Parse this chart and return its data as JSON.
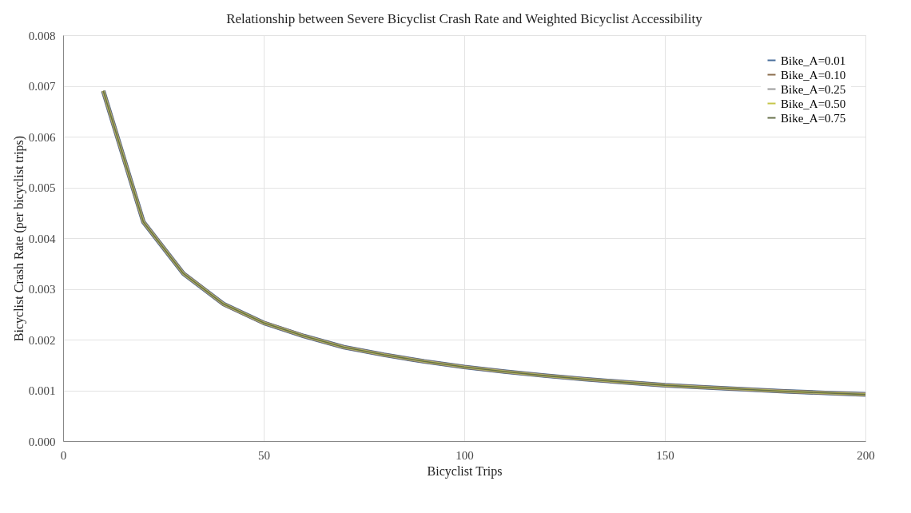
{
  "chart_data": {
    "type": "line",
    "title": "Relationship between Severe Bicyclist Crash Rate and Weighted Bicyclist Accessibility",
    "xlabel": "Bicyclist Trips",
    "ylabel": "Bicyclist Crash Rate (per bicyclist trips)",
    "x": [
      10,
      20,
      30,
      40,
      50,
      60,
      70,
      80,
      90,
      100,
      110,
      120,
      130,
      140,
      150,
      160,
      170,
      180,
      190,
      200
    ],
    "series": [
      {
        "name": "Bike_A=0.01",
        "color": "#4a6f9c",
        "values": [
          0.0069,
          0.00432,
          0.0033,
          0.0027,
          0.00233,
          0.00207,
          0.00185,
          0.0017,
          0.00157,
          0.00146,
          0.00137,
          0.00129,
          0.00122,
          0.00116,
          0.0011,
          0.00106,
          0.00102,
          0.00098,
          0.00095,
          0.00092
        ]
      },
      {
        "name": "Bike_A=0.10",
        "color": "#8b6d4c",
        "values": [
          0.0069,
          0.00432,
          0.0033,
          0.0027,
          0.00233,
          0.00207,
          0.00185,
          0.0017,
          0.00157,
          0.00146,
          0.00137,
          0.00129,
          0.00122,
          0.00116,
          0.0011,
          0.00106,
          0.00102,
          0.00098,
          0.00095,
          0.00092
        ]
      },
      {
        "name": "Bike_A=0.25",
        "color": "#9a9a9a",
        "values": [
          0.0069,
          0.00432,
          0.0033,
          0.0027,
          0.00233,
          0.00207,
          0.00185,
          0.0017,
          0.00157,
          0.00146,
          0.00137,
          0.00129,
          0.00122,
          0.00116,
          0.0011,
          0.00106,
          0.00102,
          0.00098,
          0.00095,
          0.00092
        ]
      },
      {
        "name": "Bike_A=0.50",
        "color": "#c6c64a",
        "values": [
          0.0069,
          0.00432,
          0.0033,
          0.0027,
          0.00233,
          0.00207,
          0.00185,
          0.0017,
          0.00157,
          0.00146,
          0.00137,
          0.00129,
          0.00122,
          0.00116,
          0.0011,
          0.00106,
          0.00102,
          0.00098,
          0.00095,
          0.00092
        ]
      },
      {
        "name": "Bike_A=0.75",
        "color": "#66704a",
        "values": [
          0.0069,
          0.00432,
          0.0033,
          0.0027,
          0.00233,
          0.00207,
          0.00185,
          0.0017,
          0.00157,
          0.00146,
          0.00137,
          0.00129,
          0.00122,
          0.00116,
          0.0011,
          0.00106,
          0.00102,
          0.00098,
          0.00095,
          0.00092
        ]
      }
    ],
    "xlim": [
      0,
      200
    ],
    "xticks": [
      0,
      50,
      100,
      150,
      200
    ],
    "ylim": [
      0,
      0.008
    ],
    "yticks": [
      {
        "value": 0,
        "label": "0.000"
      },
      {
        "value": 0.001,
        "label": "0.001"
      },
      {
        "value": 0.002,
        "label": "0.002"
      },
      {
        "value": 0.003,
        "label": "0.003"
      },
      {
        "value": 0.004,
        "label": "0.004"
      },
      {
        "value": 0.005,
        "label": "0.005"
      },
      {
        "value": 0.006,
        "label": "0.006"
      },
      {
        "value": 0.007,
        "label": "0.007"
      },
      {
        "value": 0.008,
        "label": "0.008"
      }
    ],
    "grid": true,
    "legend": "top right",
    "marker": "none",
    "line_style": "solid"
  }
}
